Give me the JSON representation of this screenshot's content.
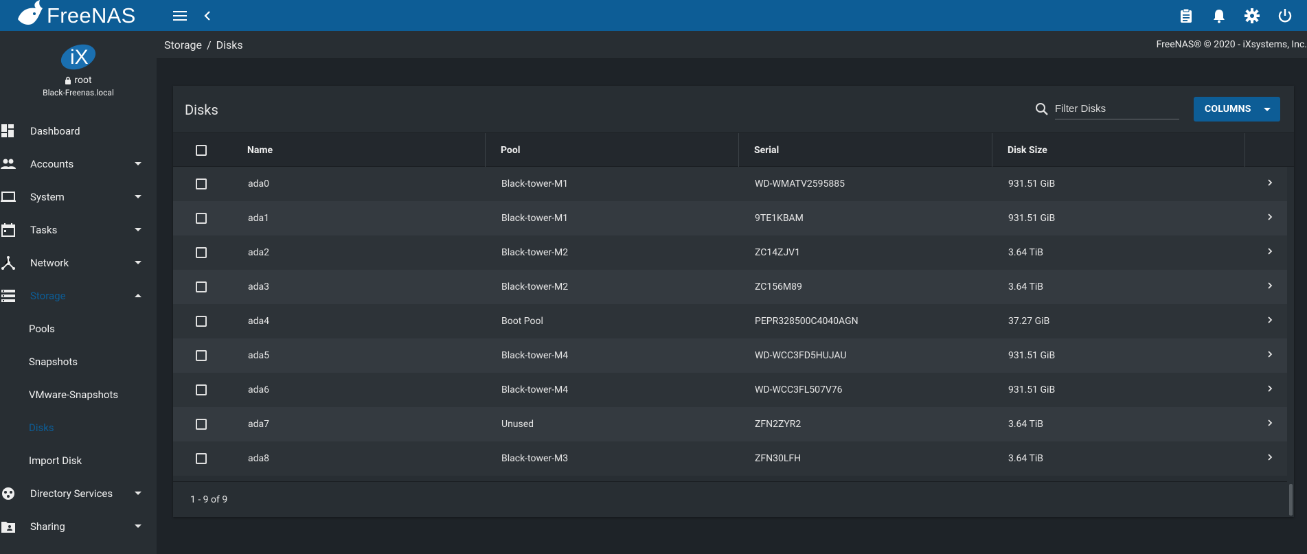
{
  "topbar": {
    "brand": "FreeNAS"
  },
  "sidebar": {
    "user": "root",
    "host": "Black-Freenas.local",
    "items": [
      {
        "label": "Dashboard",
        "name": "dashboard",
        "expandable": false
      },
      {
        "label": "Accounts",
        "name": "accounts",
        "expandable": true
      },
      {
        "label": "System",
        "name": "system",
        "expandable": true
      },
      {
        "label": "Tasks",
        "name": "tasks",
        "expandable": true
      },
      {
        "label": "Network",
        "name": "network",
        "expandable": true
      },
      {
        "label": "Storage",
        "name": "storage",
        "expandable": true,
        "active": true
      }
    ],
    "storage_sub": [
      "Pools",
      "Snapshots",
      "VMware-Snapshots",
      "Disks",
      "Import Disk"
    ],
    "items_after": [
      {
        "label": "Directory Services",
        "name": "directory-services"
      },
      {
        "label": "Sharing",
        "name": "sharing"
      }
    ]
  },
  "breadcrumb": {
    "parent": "Storage",
    "separator": "/",
    "current": "Disks"
  },
  "copyright": "FreeNAS® © 2020 - iXsystems, Inc.",
  "card": {
    "title": "Disks",
    "filter_placeholder": "Filter Disks",
    "columns_label": "COLUMNS",
    "headers": {
      "name": "Name",
      "pool": "Pool",
      "serial": "Serial",
      "size": "Disk Size"
    },
    "rows": [
      {
        "name": "ada0",
        "pool": "Black-tower-M1",
        "serial": "WD-WMATV2595885",
        "size": "931.51 GiB"
      },
      {
        "name": "ada1",
        "pool": "Black-tower-M1",
        "serial": "9TE1KBAM",
        "size": "931.51 GiB"
      },
      {
        "name": "ada2",
        "pool": "Black-tower-M2",
        "serial": "ZC14ZJV1",
        "size": "3.64 TiB"
      },
      {
        "name": "ada3",
        "pool": "Black-tower-M2",
        "serial": "ZC156M89",
        "size": "3.64 TiB"
      },
      {
        "name": "ada4",
        "pool": "Boot Pool",
        "serial": "PEPR328500C4040AGN",
        "size": "37.27 GiB"
      },
      {
        "name": "ada5",
        "pool": "Black-tower-M4",
        "serial": "WD-WCC3FD5HUJAU",
        "size": "931.51 GiB"
      },
      {
        "name": "ada6",
        "pool": "Black-tower-M4",
        "serial": "WD-WCC3FL507V76",
        "size": "931.51 GiB"
      },
      {
        "name": "ada7",
        "pool": "Unused",
        "serial": "ZFN2ZYR2",
        "size": "3.64 TiB"
      },
      {
        "name": "ada8",
        "pool": "Black-tower-M3",
        "serial": "ZFN30LFH",
        "size": "3.64 TiB"
      }
    ],
    "footer_count": "1 - 9 of 9"
  },
  "colors": {
    "topbar": "#0d5d96",
    "sidebar": "#282e33",
    "background": "#1e2328",
    "accent": "#0d5d96"
  }
}
